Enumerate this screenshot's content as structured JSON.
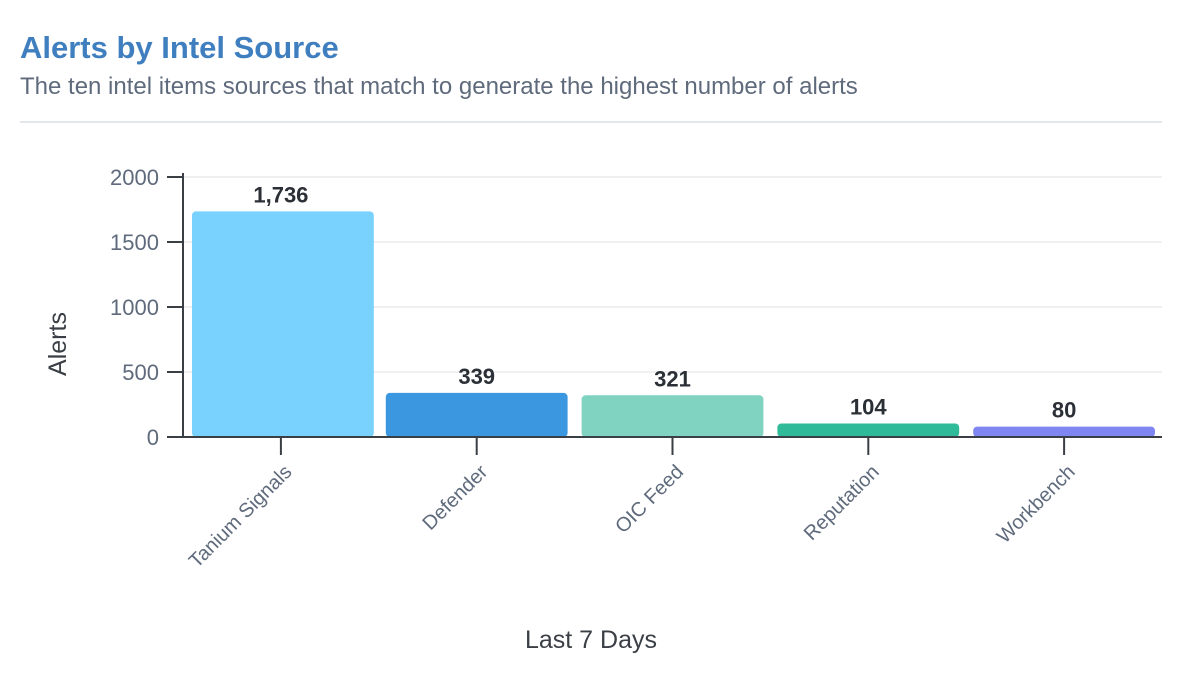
{
  "card": {
    "title": "Alerts by Intel Source",
    "subtitle": "The ten intel items sources that match to generate the highest number of alerts"
  },
  "chart_data": {
    "type": "bar",
    "categories": [
      "Tanium Signals",
      "Defender",
      "OIC Feed",
      "Reputation",
      "Workbench"
    ],
    "values": [
      1736,
      339,
      321,
      104,
      80
    ],
    "data_labels": [
      "1,736",
      "339",
      "321",
      "104",
      "80"
    ],
    "colors": [
      "#79d2fd",
      "#3b98e0",
      "#7fd3c0",
      "#2fbb9a",
      "#7f86f2"
    ],
    "ylim": [
      0,
      2000
    ],
    "yticks": [
      0,
      500,
      1000,
      1500,
      2000
    ],
    "ylabel": "Alerts",
    "xlabel": "Last 7 Days",
    "grid": true,
    "legend": "none"
  }
}
